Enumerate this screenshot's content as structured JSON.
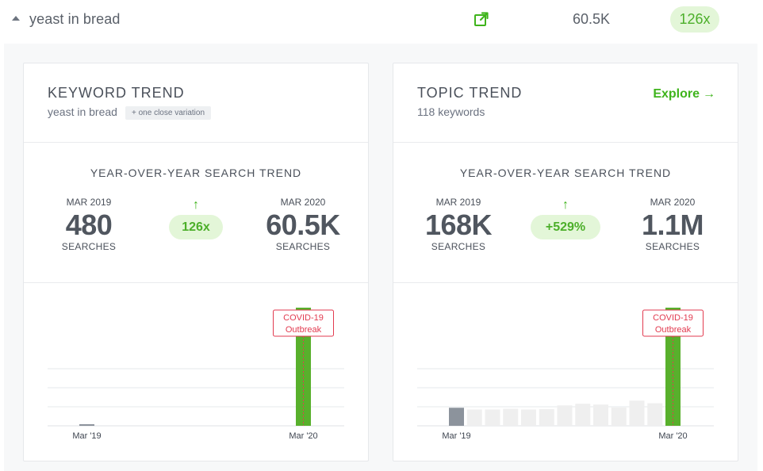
{
  "row": {
    "keyword": "yeast in bread",
    "volume": "60.5K",
    "growth": "126x",
    "colors": {
      "accent": "#3fb41c",
      "growth_bg": "#e3f6d8"
    }
  },
  "keyword_trend": {
    "title": "KEYWORD TREND",
    "subtitle": "yeast in bread",
    "variation": "+ one close variation",
    "yoy_heading": "YEAR-OVER-YEAR SEARCH TREND",
    "from_period": "MAR 2019",
    "from_value": "480",
    "from_unit": "SEARCHES",
    "change": "126x",
    "to_period": "MAR 2020",
    "to_value": "60.5K",
    "to_unit": "SEARCHES"
  },
  "topic_trend": {
    "title": "TOPIC TREND",
    "subtitle": "118 keywords",
    "explore_label": "Explore",
    "yoy_heading": "YEAR-OVER-YEAR SEARCH TREND",
    "from_period": "MAR 2019",
    "from_value": "168K",
    "from_unit": "SEARCHES",
    "change": "+529%",
    "to_period": "MAR 2020",
    "to_value": "1.1M",
    "to_unit": "SEARCHES"
  },
  "chart_data": [
    {
      "type": "bar",
      "title": "",
      "categories": [
        "Mar '19",
        "Apr '19",
        "May '19",
        "Jun '19",
        "Jul '19",
        "Aug '19",
        "Sep '19",
        "Oct '19",
        "Nov '19",
        "Dec '19",
        "Jan '20",
        "Feb '20",
        "Mar '20"
      ],
      "tick_labels": [
        "Mar '19",
        "Mar '20"
      ],
      "values": [
        480,
        0,
        0,
        0,
        0,
        0,
        0,
        0,
        0,
        0,
        0,
        0,
        60500
      ],
      "ylim": [
        0,
        60500
      ],
      "grid": true,
      "colors": {
        "first": "#8c939c",
        "middle": "#efefef",
        "last": "#58b02c"
      },
      "annotation": {
        "label_line1": "COVID-19",
        "label_line2": "Outbreak",
        "at": "Mar '20",
        "color": "#e23b50"
      }
    },
    {
      "type": "bar",
      "title": "",
      "categories": [
        "Mar '19",
        "Apr '19",
        "May '19",
        "Jun '19",
        "Jul '19",
        "Aug '19",
        "Sep '19",
        "Oct '19",
        "Nov '19",
        "Dec '19",
        "Jan '20",
        "Feb '20",
        "Mar '20"
      ],
      "tick_labels": [
        "Mar '19",
        "Mar '20"
      ],
      "values": [
        168000,
        152000,
        152000,
        158000,
        152000,
        155000,
        190000,
        205000,
        198000,
        170000,
        235000,
        210000,
        1100000
      ],
      "ylim": [
        0,
        1100000
      ],
      "grid": true,
      "colors": {
        "first": "#8c939c",
        "middle": "#efefef",
        "last": "#58b02c"
      },
      "annotation": {
        "label_line1": "COVID-19",
        "label_line2": "Outbreak",
        "at": "Mar '20",
        "color": "#e23b50"
      }
    }
  ]
}
